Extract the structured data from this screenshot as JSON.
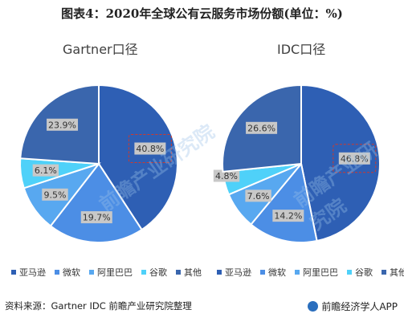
{
  "title": "图表4：2020年全球公有云服务市场份额(单位：%)",
  "colors": {
    "亚马逊": "#2e5fb4",
    "微软": "#4c8ee5",
    "阿里巴巴": "#58a8f0",
    "谷歌": "#4fd1f9",
    "其他": "#3a66ad",
    "highlight_box": "#d0392b"
  },
  "legend": [
    {
      "label": "亚马逊",
      "color": "#2e5fb4"
    },
    {
      "label": "微软",
      "color": "#4c8ee5"
    },
    {
      "label": "阿里巴巴",
      "color": "#58a8f0"
    },
    {
      "label": "谷歌",
      "color": "#4fd1f9"
    },
    {
      "label": "其他",
      "color": "#3a66ad"
    }
  ],
  "chart_data": [
    {
      "type": "pie",
      "title": "Gartner口径",
      "categories": [
        "亚马逊",
        "微软",
        "阿里巴巴",
        "谷歌",
        "其他"
      ],
      "values": [
        40.8,
        19.7,
        9.5,
        6.1,
        23.9
      ],
      "labels": [
        "40.8%",
        "19.7%",
        "9.5%",
        "6.1%",
        "23.9%"
      ],
      "highlighted": "亚马逊"
    },
    {
      "type": "pie",
      "title": "IDC口径",
      "categories": [
        "亚马逊",
        "微软",
        "阿里巴巴",
        "谷歌",
        "其他"
      ],
      "values": [
        46.8,
        14.2,
        7.6,
        4.8,
        26.6
      ],
      "labels": [
        "46.8%",
        "14.2%",
        "7.6%",
        "4.8%",
        "26.6%"
      ],
      "highlighted": "亚马逊"
    }
  ],
  "source": "资料来源：Gartner IDC 前瞻产业研究院整理",
  "brand": "前瞻经济学人APP",
  "watermark": "前瞻产业研究院"
}
